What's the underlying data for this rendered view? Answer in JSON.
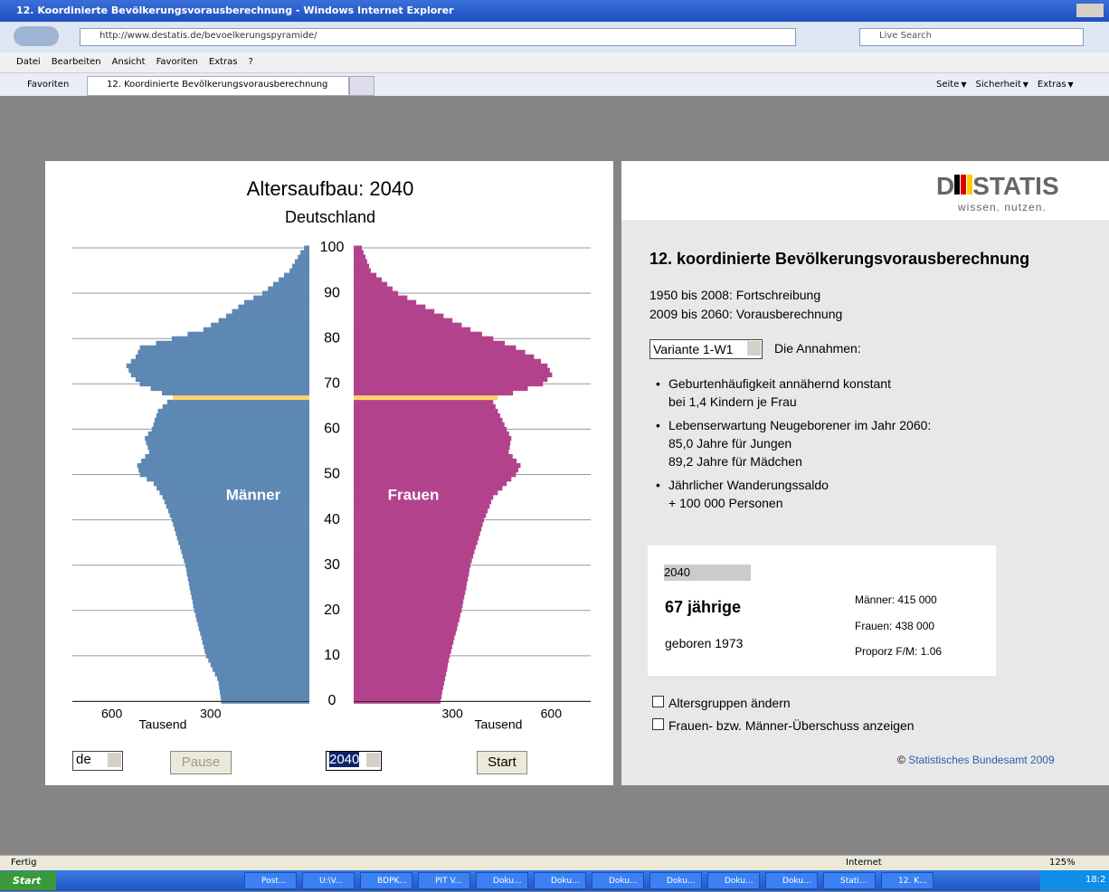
{
  "browser": {
    "window_title": "12. Koordinierte Bevölkerungsvorausberechnung - Windows Internet Explorer",
    "url": "http://www.destatis.de/bevoelkerungspyramide/",
    "search_placeholder": "Live Search",
    "menu": [
      "Datei",
      "Bearbeiten",
      "Ansicht",
      "Favoriten",
      "Extras",
      "?"
    ],
    "favorites": "Favoriten",
    "tab": "12. Koordinierte Bevölkerungsvorausberechnung",
    "toolbar": [
      "Seite",
      "Sicherheit",
      "Extras"
    ],
    "status": "Fertig",
    "zone": "Internet",
    "zoom": "125%"
  },
  "taskbar": {
    "start": "Start",
    "items": [
      "Post...",
      "U:\\V...",
      "BDPK...",
      "PIT V...",
      "Doku...",
      "Doku...",
      "Doku...",
      "Doku...",
      "Doku...",
      "Doku...",
      "Stati...",
      "12. K..."
    ],
    "clock": "18:2"
  },
  "chart_data": {
    "type": "pyramid",
    "title": "Altersaufbau: 2040",
    "subtitle": "Deutschland",
    "ylabel": "Tausend",
    "x": [
      0,
      1,
      2,
      3,
      4,
      5,
      6,
      7,
      8,
      9,
      10,
      11,
      12,
      13,
      14,
      15,
      16,
      17,
      18,
      19,
      20,
      21,
      22,
      23,
      24,
      25,
      26,
      27,
      28,
      29,
      30,
      31,
      32,
      33,
      34,
      35,
      36,
      37,
      38,
      39,
      40,
      41,
      42,
      43,
      44,
      45,
      46,
      47,
      48,
      49,
      50,
      51,
      52,
      53,
      54,
      55,
      56,
      57,
      58,
      59,
      60,
      61,
      62,
      63,
      64,
      65,
      66,
      67,
      68,
      69,
      70,
      71,
      72,
      73,
      74,
      75,
      76,
      77,
      78,
      79,
      80,
      81,
      82,
      83,
      84,
      85,
      86,
      87,
      88,
      89,
      90,
      91,
      92,
      93,
      94,
      95,
      96,
      97,
      98,
      99,
      100
    ],
    "xlim": [
      0,
      100
    ],
    "xticks": [
      0,
      10,
      20,
      30,
      40,
      50,
      60,
      70,
      80,
      90,
      100
    ],
    "ylim": [
      0,
      720
    ],
    "yticks": [
      300,
      600
    ],
    "grid": true,
    "highlight_x": 67,
    "highlight_color": "#fcd56a",
    "series": [
      {
        "name": "Männer",
        "color": "#5d88b3",
        "values": [
          268,
          270,
          272,
          274,
          276,
          280,
          287,
          294,
          300,
          307,
          314,
          318,
          321,
          325,
          328,
          332,
          336,
          339,
          343,
          346,
          350,
          353,
          355,
          358,
          361,
          364,
          366,
          369,
          372,
          374,
          377,
          381,
          385,
          389,
          393,
          398,
          402,
          406,
          410,
          414,
          418,
          424,
          429,
          435,
          440,
          446,
          455,
          464,
          473,
          494,
          515,
          519,
          523,
          511,
          499,
          487,
          491,
          496,
          500,
          490,
          479,
          474,
          470,
          465,
          460,
          446,
          432,
          415,
          448,
          482,
          515,
          528,
          542,
          549,
          556,
          542,
          528,
          521,
          515,
          466,
          418,
          370,
          322,
          299,
          276,
          253,
          235,
          216,
          198,
          170,
          143,
          126,
          110,
          93,
          77,
          60,
          52,
          44,
          35,
          27,
          16
        ]
      },
      {
        "name": "Frauen",
        "color": "#b3428c",
        "values": [
          264,
          267,
          269,
          272,
          275,
          278,
          281,
          284,
          286,
          289,
          292,
          296,
          299,
          303,
          306,
          310,
          314,
          317,
          321,
          324,
          328,
          331,
          333,
          336,
          339,
          342,
          344,
          347,
          350,
          352,
          355,
          359,
          363,
          367,
          371,
          376,
          380,
          384,
          388,
          392,
          396,
          402,
          407,
          413,
          418,
          424,
          438,
          452,
          465,
          479,
          493,
          500,
          507,
          495,
          483,
          471,
          474,
          476,
          479,
          472,
          465,
          458,
          452,
          445,
          438,
          431,
          424,
          438,
          484,
          529,
          575,
          589,
          603,
          596,
          589,
          569,
          548,
          521,
          493,
          459,
          424,
          390,
          355,
          328,
          300,
          273,
          245,
          218,
          190,
          163,
          135,
          118,
          102,
          85,
          69,
          52,
          47,
          41,
          36,
          30,
          25
        ]
      }
    ]
  },
  "controls": {
    "region": "de",
    "pause": "Pause",
    "year": "2040",
    "start": "Start"
  },
  "info": {
    "logo_left": "D",
    "logo_right": "STATIS",
    "tagline": "wissen. nutzen.",
    "heading": "12. koordinierte Bevölkerungsvorausberechnung",
    "periods": [
      "1950 bis 2008: Fortschreibung",
      "2009 bis 2060: Vorausberechnung"
    ],
    "variant": "Variante 1-W1",
    "assumptions_label": "Die Annahmen:",
    "assumptions": [
      [
        "Geburtenhäufigkeit annähernd konstant",
        "bei 1,4 Kindern je Frau"
      ],
      [
        "Lebenserwartung Neugeborener im Jahr 2060:",
        "85,0 Jahre für Jungen",
        "89,2 Jahre für Mädchen"
      ],
      [
        "Jährlicher Wanderungssaldo",
        "+ 100 000 Personen"
      ]
    ],
    "box": {
      "year": "2040",
      "age": "67 jährige",
      "born": "geboren 1973",
      "men": "Männer: 415 000",
      "women": "Frauen: 438 000",
      "ratio": "Proporz F/M: 1.06"
    },
    "options": [
      "Altersgruppen ändern",
      "Frauen- bzw. Männer-Überschuss anzeigen"
    ],
    "copyright_sign": "©",
    "copyright": "Statistisches Bundesamt 2009"
  }
}
